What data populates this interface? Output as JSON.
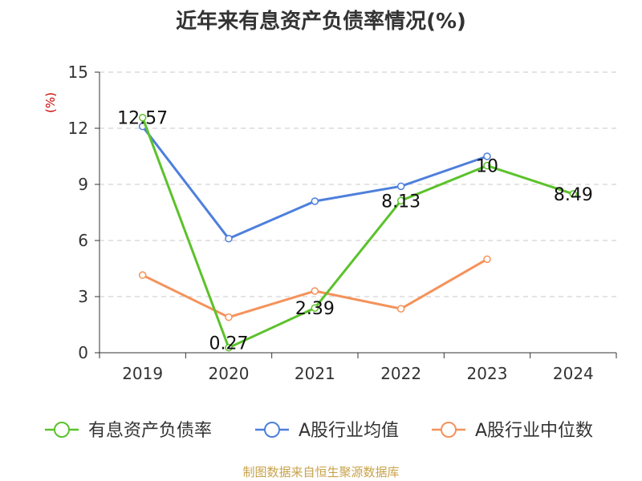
{
  "title": "近年来有息资产负债率情况(%)",
  "source": "制图数据来自恒生聚源数据库",
  "chart_data": {
    "type": "line",
    "title": "近年来有息资产负债率情况(%)",
    "ylabel": "(%)",
    "xlabel": "",
    "categories": [
      "2019",
      "2020",
      "2021",
      "2022",
      "2023",
      "2024"
    ],
    "ylim": [
      0,
      15
    ],
    "yticks": [
      0,
      3,
      6,
      9,
      12,
      15
    ],
    "grid": true,
    "legend_position": "bottom",
    "series": [
      {
        "name": "有息资产负债率",
        "color": "#5bc22a",
        "values": [
          12.57,
          0.27,
          2.39,
          8.13,
          10,
          8.49
        ],
        "labels": [
          "12.57",
          "0.27",
          "2.39",
          "8.13",
          "10",
          "8.49"
        ]
      },
      {
        "name": "A股行业均值",
        "color": "#4e7fdc",
        "values": [
          12.1,
          6.1,
          8.1,
          8.9,
          10.5,
          null
        ]
      },
      {
        "name": "A股行业中位数",
        "color": "#f4925a",
        "values": [
          4.15,
          1.9,
          3.3,
          2.35,
          5.0,
          null
        ]
      }
    ]
  }
}
